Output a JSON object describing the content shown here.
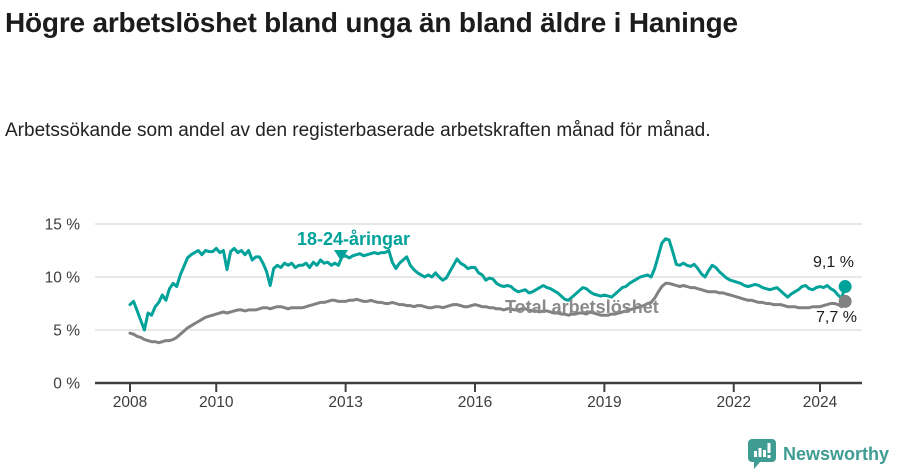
{
  "title": "Högre arbetslöshet bland unga än bland äldre i Haninge",
  "subtitle": "Arbetssökande som andel av den registerbaserade arbetskraften månad för månad.",
  "annotations": {
    "youth_label": "18-24-åringar",
    "total_label": "Total arbetslöshet",
    "youth_end_value": "9,1 %",
    "total_end_value": "7,7 %"
  },
  "brand": {
    "name": "Newsworthy"
  },
  "colors": {
    "youth": "#00A29A",
    "total": "#818181",
    "total_label": "#8A8A8A",
    "axis": "#404040",
    "grid": "#DBDBDB",
    "axis_text": "#3C3C3C",
    "title_text": "#1C1C1C",
    "value_text": "#1C1C1C",
    "brand": "#3F9C92",
    "background": "#FFFFFF"
  },
  "chart_data": {
    "type": "line",
    "title": "Högre arbetslöshet bland unga än bland äldre i Haninge",
    "subtitle": "Arbetssökande som andel av den registerbaserade arbetskraften månad för månad.",
    "unit": "%",
    "grid": "horizontal",
    "x_start_year": 2008,
    "frequency": "monthly",
    "x_end": "2024-08",
    "xlim": [
      2008,
      2024.67
    ],
    "ylim": [
      0,
      16
    ],
    "x_tick_years": [
      2008,
      2010,
      2013,
      2016,
      2019,
      2022,
      2024
    ],
    "x_tick_labels": [
      "2008",
      "2010",
      "2013",
      "2016",
      "2019",
      "2022",
      "2024"
    ],
    "y_ticks": [
      0,
      5,
      10,
      15
    ],
    "y_tick_labels": [
      "0 %",
      "5 %",
      "10 %",
      "15 %"
    ],
    "legend_position": "inline-labels",
    "series": [
      {
        "name": "18-24-åringar",
        "color": "#00A29A",
        "end_label": "9,1 %",
        "end_value": 9.1,
        "values": [
          7.4,
          7.7,
          6.8,
          5.9,
          5.0,
          6.6,
          6.4,
          7.2,
          7.6,
          8.3,
          7.8,
          8.9,
          9.4,
          9.1,
          10.2,
          11.0,
          11.8,
          12.1,
          12.3,
          12.5,
          12.1,
          12.5,
          12.4,
          12.4,
          12.7,
          12.3,
          12.5,
          10.7,
          12.4,
          12.7,
          12.3,
          12.5,
          12.1,
          12.5,
          11.6,
          11.9,
          11.9,
          11.3,
          10.5,
          9.2,
          10.8,
          11.1,
          10.9,
          11.3,
          11.1,
          11.3,
          10.9,
          11.1,
          11.1,
          11.3,
          10.9,
          11.4,
          11.1,
          11.6,
          11.3,
          11.4,
          11.1,
          11.3,
          11.1,
          11.9,
          12.0,
          11.8,
          12.0,
          12.1,
          12.2,
          12.0,
          12.1,
          12.2,
          12.3,
          12.2,
          12.3,
          12.3,
          12.5,
          11.4,
          10.8,
          11.3,
          11.6,
          11.9,
          11.1,
          10.7,
          10.4,
          10.2,
          10.0,
          10.2,
          10.0,
          10.4,
          10.0,
          9.7,
          9.9,
          10.5,
          11.1,
          11.7,
          11.3,
          11.1,
          10.8,
          10.9,
          10.9,
          10.4,
          10.2,
          9.7,
          9.9,
          9.8,
          9.4,
          9.2,
          9.1,
          9.2,
          9.1,
          8.8,
          8.6,
          8.7,
          8.8,
          8.5,
          8.6,
          8.8,
          9.0,
          9.2,
          9.0,
          8.9,
          8.7,
          8.5,
          8.2,
          7.9,
          7.8,
          8.1,
          8.4,
          8.7,
          9.0,
          8.9,
          8.6,
          8.4,
          8.3,
          8.2,
          8.3,
          8.2,
          8.1,
          8.4,
          8.7,
          9.0,
          9.1,
          9.4,
          9.6,
          9.8,
          10.0,
          10.1,
          10.2,
          10.0,
          10.8,
          12.0,
          13.2,
          13.6,
          13.5,
          12.4,
          11.2,
          11.1,
          11.3,
          11.1,
          11.0,
          11.2,
          10.8,
          10.3,
          10.0,
          10.6,
          11.1,
          10.9,
          10.5,
          10.2,
          9.9,
          9.7,
          9.6,
          9.5,
          9.4,
          9.2,
          9.1,
          9.2,
          9.3,
          9.2,
          9.0,
          8.9,
          8.8,
          8.9,
          9.0,
          8.7,
          8.4,
          8.1,
          8.4,
          8.6,
          8.8,
          9.1,
          9.2,
          8.9,
          8.8,
          9.0,
          9.1,
          9.0,
          9.2,
          8.9,
          8.7,
          8.3,
          8.0,
          9.1
        ]
      },
      {
        "name": "Total arbetslöshet",
        "color": "#818181",
        "end_label": "7,7 %",
        "end_value": 7.7,
        "values": [
          4.7,
          4.6,
          4.4,
          4.3,
          4.1,
          4.0,
          3.9,
          3.9,
          3.8,
          3.9,
          4.0,
          4.0,
          4.1,
          4.3,
          4.6,
          4.9,
          5.2,
          5.4,
          5.6,
          5.8,
          6.0,
          6.2,
          6.3,
          6.4,
          6.5,
          6.6,
          6.7,
          6.6,
          6.7,
          6.8,
          6.9,
          6.9,
          6.8,
          6.9,
          6.9,
          6.9,
          7.0,
          7.1,
          7.1,
          7.0,
          7.1,
          7.2,
          7.2,
          7.1,
          7.0,
          7.1,
          7.1,
          7.1,
          7.1,
          7.2,
          7.3,
          7.4,
          7.5,
          7.6,
          7.6,
          7.7,
          7.8,
          7.8,
          7.7,
          7.7,
          7.7,
          7.8,
          7.8,
          7.9,
          7.8,
          7.7,
          7.7,
          7.8,
          7.7,
          7.6,
          7.6,
          7.5,
          7.5,
          7.6,
          7.5,
          7.4,
          7.4,
          7.3,
          7.3,
          7.2,
          7.3,
          7.3,
          7.2,
          7.1,
          7.1,
          7.2,
          7.2,
          7.1,
          7.2,
          7.3,
          7.4,
          7.4,
          7.3,
          7.2,
          7.2,
          7.3,
          7.4,
          7.3,
          7.2,
          7.2,
          7.1,
          7.1,
          7.0,
          7.0,
          6.9,
          7.0,
          7.0,
          6.9,
          6.9,
          7.0,
          7.0,
          6.9,
          6.8,
          6.8,
          6.7,
          6.8,
          6.8,
          6.7,
          6.6,
          6.6,
          6.5,
          6.5,
          6.4,
          6.5,
          6.5,
          6.6,
          6.6,
          6.5,
          6.7,
          6.6,
          6.5,
          6.4,
          6.4,
          6.4,
          6.5,
          6.5,
          6.6,
          6.7,
          6.8,
          6.9,
          7.0,
          7.1,
          7.2,
          7.3,
          7.5,
          7.6,
          8.0,
          8.6,
          9.1,
          9.4,
          9.4,
          9.3,
          9.2,
          9.1,
          9.2,
          9.1,
          9.0,
          9.0,
          8.9,
          8.8,
          8.7,
          8.6,
          8.6,
          8.6,
          8.5,
          8.5,
          8.4,
          8.3,
          8.2,
          8.1,
          8.0,
          7.9,
          7.8,
          7.8,
          7.7,
          7.6,
          7.6,
          7.5,
          7.5,
          7.4,
          7.4,
          7.4,
          7.3,
          7.2,
          7.2,
          7.2,
          7.1,
          7.1,
          7.1,
          7.1,
          7.2,
          7.2,
          7.2,
          7.3,
          7.4,
          7.5,
          7.5,
          7.4,
          7.2,
          7.7
        ]
      }
    ]
  }
}
